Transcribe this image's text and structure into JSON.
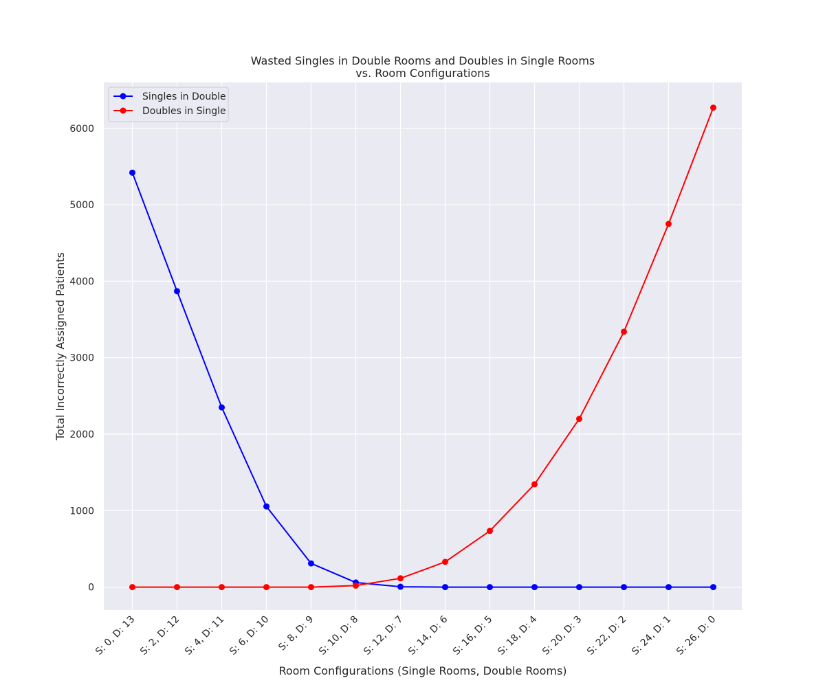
{
  "chart_data": {
    "type": "line",
    "title_line1": "Wasted Singles in Double Rooms and Doubles in Single Rooms",
    "title_line2": "vs. Room Configurations",
    "xlabel": "Room Configurations (Single Rooms, Double Rooms)",
    "ylabel": "Total Incorrectly Assigned Patients",
    "categories": [
      "S: 0, D: 13",
      "S: 2, D: 12",
      "S: 4, D: 11",
      "S: 6, D: 10",
      "S: 8, D: 9",
      "S: 10, D: 8",
      "S: 12, D: 7",
      "S: 14, D: 6",
      "S: 16, D: 5",
      "S: 18, D: 4",
      "S: 20, D: 3",
      "S: 22, D: 2",
      "S: 24, D: 1",
      "S: 26, D: 0"
    ],
    "ylim": [
      -300,
      6600
    ],
    "yticks": [
      "0",
      "1000",
      "2000",
      "3000",
      "4000",
      "5000",
      "6000"
    ],
    "grid": true,
    "background": "#eaeaf2",
    "legend_position": "upper-left",
    "series": [
      {
        "name": "Singles in Double",
        "color": "#0000ff",
        "values": [
          5420,
          3870,
          2350,
          1055,
          310,
          60,
          5,
          0,
          0,
          0,
          0,
          0,
          0,
          0
        ]
      },
      {
        "name": "Doubles in Single",
        "color": "#ff0000",
        "values": [
          0,
          0,
          0,
          0,
          0,
          20,
          115,
          330,
          735,
          1345,
          2200,
          3340,
          4750,
          6270
        ]
      }
    ]
  }
}
